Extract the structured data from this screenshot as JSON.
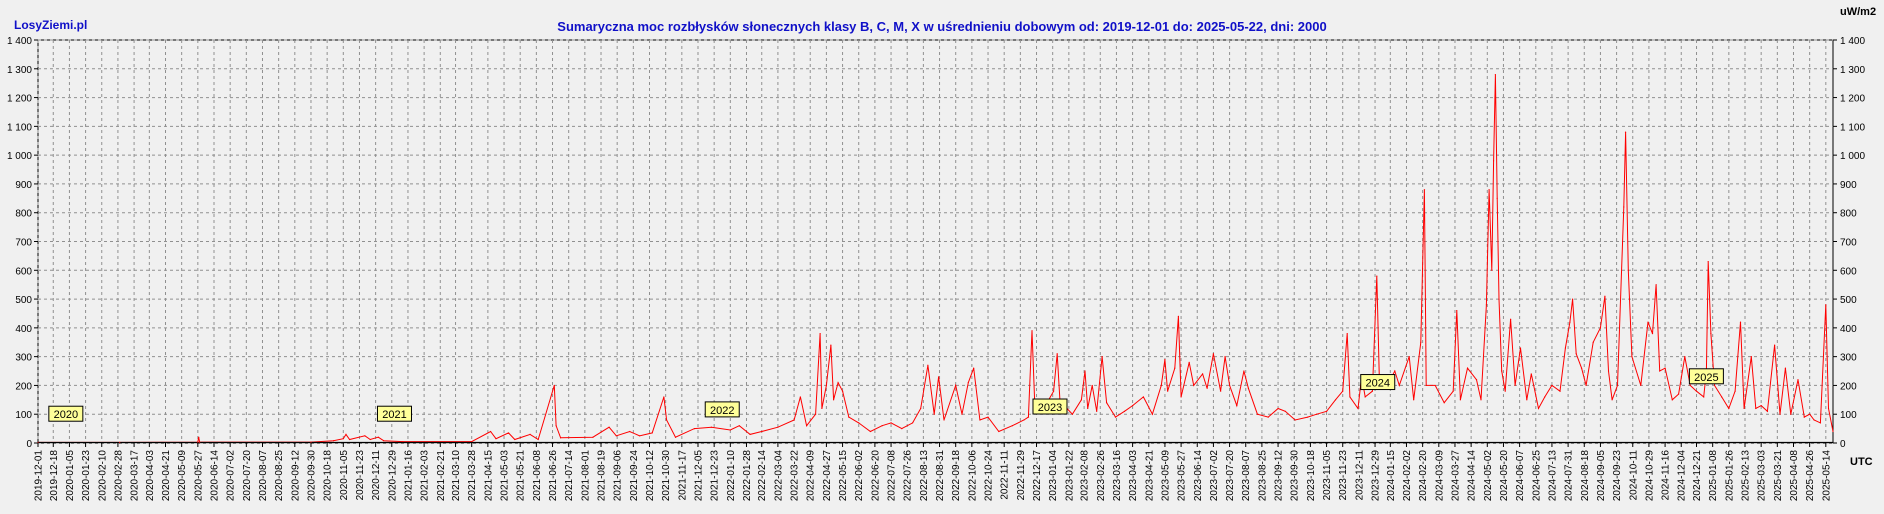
{
  "brand": "LosyZiemi.pl",
  "unit_label": "uW/m2",
  "utc_label": "UTC",
  "chart_data": {
    "type": "line",
    "title": "Sumaryczna moc rozbłysków słonecznych klasy B, C, M, X w uśrednieniu dobowym od: 2019-12-01 do: 2025-05-22, dni: 2000",
    "xlabel": "UTC",
    "ylabel": "uW/m2",
    "x_start": "2019-12-01",
    "x_end": "2025-05-22",
    "days": 2000,
    "ylim": [
      0,
      1400
    ],
    "yticks": [
      0,
      100,
      200,
      300,
      400,
      500,
      600,
      700,
      800,
      900,
      1000,
      1100,
      1200,
      1300,
      1400
    ],
    "ytick_labels": [
      "0",
      "100",
      "200",
      "300",
      "400",
      "500",
      "600",
      "700",
      "800",
      "900",
      "1 000",
      "1 100",
      "1 200",
      "1 300",
      "1 400"
    ],
    "xtick_labels": [
      "2019-12-01",
      "2019-12-18",
      "2020-01-05",
      "2020-01-23",
      "2020-02-10",
      "2020-02-28",
      "2020-03-17",
      "2020-04-03",
      "2020-04-21",
      "2020-05-09",
      "2020-05-27",
      "2020-06-14",
      "2020-07-02",
      "2020-07-20",
      "2020-08-07",
      "2020-08-25",
      "2020-09-12",
      "2020-09-30",
      "2020-10-18",
      "2020-11-05",
      "2020-11-23",
      "2020-12-11",
      "2020-12-29",
      "2021-01-16",
      "2021-02-03",
      "2021-02-21",
      "2021-03-10",
      "2021-03-28",
      "2021-04-15",
      "2021-05-03",
      "2021-05-21",
      "2021-06-08",
      "2021-06-26",
      "2021-07-14",
      "2021-08-01",
      "2021-08-19",
      "2021-09-06",
      "2021-09-24",
      "2021-10-12",
      "2021-10-30",
      "2021-11-17",
      "2021-12-05",
      "2021-12-23",
      "2022-01-10",
      "2022-01-28",
      "2022-02-14",
      "2022-03-04",
      "2022-03-22",
      "2022-04-09",
      "2022-04-27",
      "2022-05-15",
      "2022-06-02",
      "2022-06-20",
      "2022-07-08",
      "2022-07-26",
      "2022-08-13",
      "2022-08-31",
      "2022-09-18",
      "2022-10-06",
      "2022-10-24",
      "2022-11-11",
      "2022-11-29",
      "2022-12-17",
      "2023-01-04",
      "2023-01-22",
      "2023-02-08",
      "2023-02-26",
      "2023-03-16",
      "2023-04-03",
      "2023-04-21",
      "2023-05-09",
      "2023-05-27",
      "2023-06-14",
      "2023-07-02",
      "2023-07-20",
      "2023-08-07",
      "2023-08-25",
      "2023-09-12",
      "2023-09-30",
      "2023-10-18",
      "2023-11-05",
      "2023-11-23",
      "2023-12-11",
      "2023-12-29",
      "2024-01-15",
      "2024-02-02",
      "2024-02-20",
      "2024-03-09",
      "2024-03-27",
      "2024-04-14",
      "2024-05-02",
      "2024-05-20",
      "2024-06-07",
      "2024-06-25",
      "2024-07-13",
      "2024-07-31",
      "2024-08-18",
      "2024-09-05",
      "2024-09-23",
      "2024-10-11",
      "2024-10-29",
      "2024-11-16",
      "2024-12-04",
      "2024-12-21",
      "2025-01-08",
      "2025-01-26",
      "2025-02-13",
      "2025-03-03",
      "2025-03-21",
      "2025-04-08",
      "2025-04-26",
      "2025-05-14"
    ],
    "grid": true,
    "series": [
      {
        "color": "#ff0000",
        "baseline_color": "#000000",
        "points": [
          [
            "2019-12-01",
            2
          ],
          [
            "2020-03-01",
            2
          ],
          [
            "2020-05-27",
            3
          ],
          [
            "2020-05-28",
            20
          ],
          [
            "2020-05-29",
            3
          ],
          [
            "2020-09-30",
            3
          ],
          [
            "2020-10-25",
            8
          ],
          [
            "2020-11-05",
            15
          ],
          [
            "2020-11-08",
            30
          ],
          [
            "2020-11-12",
            12
          ],
          [
            "2020-11-29",
            25
          ],
          [
            "2020-12-05",
            12
          ],
          [
            "2020-12-14",
            20
          ],
          [
            "2020-12-20",
            8
          ],
          [
            "2021-01-10",
            5
          ],
          [
            "2021-03-28",
            5
          ],
          [
            "2021-04-18",
            40
          ],
          [
            "2021-04-24",
            15
          ],
          [
            "2021-05-08",
            35
          ],
          [
            "2021-05-15",
            12
          ],
          [
            "2021-06-01",
            30
          ],
          [
            "2021-06-10",
            12
          ],
          [
            "2021-06-28",
            200
          ],
          [
            "2021-06-30",
            60
          ],
          [
            "2021-07-05",
            18
          ],
          [
            "2021-08-10",
            20
          ],
          [
            "2021-08-28",
            55
          ],
          [
            "2021-09-05",
            25
          ],
          [
            "2021-09-20",
            40
          ],
          [
            "2021-10-01",
            25
          ],
          [
            "2021-10-15",
            35
          ],
          [
            "2021-10-28",
            160
          ],
          [
            "2021-10-31",
            80
          ],
          [
            "2021-11-10",
            20
          ],
          [
            "2021-12-01",
            50
          ],
          [
            "2021-12-20",
            55
          ],
          [
            "2022-01-10",
            45
          ],
          [
            "2022-01-20",
            60
          ],
          [
            "2022-02-01",
            30
          ],
          [
            "2022-02-14",
            40
          ],
          [
            "2022-03-04",
            55
          ],
          [
            "2022-03-22",
            80
          ],
          [
            "2022-03-29",
            160
          ],
          [
            "2022-04-05",
            60
          ],
          [
            "2022-04-15",
            100
          ],
          [
            "2022-04-20",
            380
          ],
          [
            "2022-04-22",
            120
          ],
          [
            "2022-04-27",
            200
          ],
          [
            "2022-05-02",
            340
          ],
          [
            "2022-05-05",
            150
          ],
          [
            "2022-05-10",
            210
          ],
          [
            "2022-05-15",
            180
          ],
          [
            "2022-05-22",
            90
          ],
          [
            "2022-06-02",
            70
          ],
          [
            "2022-06-15",
            40
          ],
          [
            "2022-06-28",
            60
          ],
          [
            "2022-07-08",
            70
          ],
          [
            "2022-07-20",
            50
          ],
          [
            "2022-08-01",
            70
          ],
          [
            "2022-08-10",
            120
          ],
          [
            "2022-08-18",
            270
          ],
          [
            "2022-08-25",
            100
          ],
          [
            "2022-08-30",
            230
          ],
          [
            "2022-09-05",
            80
          ],
          [
            "2022-09-18",
            200
          ],
          [
            "2022-09-25",
            100
          ],
          [
            "2022-10-02",
            210
          ],
          [
            "2022-10-08",
            260
          ],
          [
            "2022-10-15",
            80
          ],
          [
            "2022-10-24",
            90
          ],
          [
            "2022-11-05",
            40
          ],
          [
            "2022-11-20",
            60
          ],
          [
            "2022-12-03",
            80
          ],
          [
            "2022-12-08",
            90
          ],
          [
            "2022-12-12",
            390
          ],
          [
            "2022-12-15",
            140
          ],
          [
            "2022-12-25",
            120
          ],
          [
            "2023-01-05",
            180
          ],
          [
            "2023-01-09",
            310
          ],
          [
            "2023-01-12",
            150
          ],
          [
            "2023-01-20",
            120
          ],
          [
            "2023-01-26",
            100
          ],
          [
            "2023-02-05",
            150
          ],
          [
            "2023-02-09",
            250
          ],
          [
            "2023-02-12",
            120
          ],
          [
            "2023-02-17",
            200
          ],
          [
            "2023-02-22",
            110
          ],
          [
            "2023-02-28",
            300
          ],
          [
            "2023-03-05",
            140
          ],
          [
            "2023-03-15",
            90
          ],
          [
            "2023-03-25",
            110
          ],
          [
            "2023-04-03",
            130
          ],
          [
            "2023-04-15",
            160
          ],
          [
            "2023-04-25",
            100
          ],
          [
            "2023-05-05",
            200
          ],
          [
            "2023-05-09",
            290
          ],
          [
            "2023-05-12",
            180
          ],
          [
            "2023-05-20",
            260
          ],
          [
            "2023-05-24",
            440
          ],
          [
            "2023-05-27",
            160
          ],
          [
            "2023-06-05",
            280
          ],
          [
            "2023-06-10",
            200
          ],
          [
            "2023-06-20",
            240
          ],
          [
            "2023-06-25",
            190
          ],
          [
            "2023-07-02",
            310
          ],
          [
            "2023-07-10",
            180
          ],
          [
            "2023-07-15",
            300
          ],
          [
            "2023-07-20",
            200
          ],
          [
            "2023-07-28",
            130
          ],
          [
            "2023-08-05",
            250
          ],
          [
            "2023-08-10",
            190
          ],
          [
            "2023-08-20",
            100
          ],
          [
            "2023-09-01",
            90
          ],
          [
            "2023-09-12",
            120
          ],
          [
            "2023-09-20",
            110
          ],
          [
            "2023-10-01",
            80
          ],
          [
            "2023-10-15",
            90
          ],
          [
            "2023-10-25",
            100
          ],
          [
            "2023-11-05",
            110
          ],
          [
            "2023-11-15",
            150
          ],
          [
            "2023-11-23",
            180
          ],
          [
            "2023-11-28",
            380
          ],
          [
            "2023-12-01",
            160
          ],
          [
            "2023-12-10",
            120
          ],
          [
            "2023-12-14",
            230
          ],
          [
            "2023-12-18",
            160
          ],
          [
            "2023-12-26",
            180
          ],
          [
            "2023-12-31",
            580
          ],
          [
            "2024-01-03",
            200
          ],
          [
            "2024-01-10",
            190
          ],
          [
            "2024-01-20",
            250
          ],
          [
            "2024-01-25",
            200
          ],
          [
            "2024-02-05",
            300
          ],
          [
            "2024-02-10",
            150
          ],
          [
            "2024-02-18",
            350
          ],
          [
            "2024-02-22",
            880
          ],
          [
            "2024-02-24",
            200
          ],
          [
            "2024-03-05",
            200
          ],
          [
            "2024-03-15",
            140
          ],
          [
            "2024-03-25",
            180
          ],
          [
            "2024-03-29",
            460
          ],
          [
            "2024-04-02",
            150
          ],
          [
            "2024-04-10",
            260
          ],
          [
            "2024-04-20",
            220
          ],
          [
            "2024-04-25",
            150
          ],
          [
            "2024-05-01",
            480
          ],
          [
            "2024-05-04",
            880
          ],
          [
            "2024-05-07",
            600
          ],
          [
            "2024-05-09",
            980
          ],
          [
            "2024-05-11",
            1280
          ],
          [
            "2024-05-13",
            850
          ],
          [
            "2024-05-15",
            500
          ],
          [
            "2024-05-18",
            250
          ],
          [
            "2024-05-22",
            180
          ],
          [
            "2024-05-28",
            430
          ],
          [
            "2024-06-02",
            200
          ],
          [
            "2024-06-08",
            330
          ],
          [
            "2024-06-15",
            150
          ],
          [
            "2024-06-20",
            240
          ],
          [
            "2024-06-28",
            120
          ],
          [
            "2024-07-05",
            160
          ],
          [
            "2024-07-13",
            200
          ],
          [
            "2024-07-22",
            180
          ],
          [
            "2024-07-28",
            330
          ],
          [
            "2024-08-02",
            420
          ],
          [
            "2024-08-05",
            500
          ],
          [
            "2024-08-09",
            310
          ],
          [
            "2024-08-15",
            260
          ],
          [
            "2024-08-20",
            200
          ],
          [
            "2024-08-28",
            350
          ],
          [
            "2024-09-05",
            400
          ],
          [
            "2024-09-10",
            510
          ],
          [
            "2024-09-14",
            250
          ],
          [
            "2024-09-18",
            150
          ],
          [
            "2024-09-24",
            200
          ],
          [
            "2024-10-01",
            820
          ],
          [
            "2024-10-03",
            1080
          ],
          [
            "2024-10-06",
            600
          ],
          [
            "2024-10-10",
            300
          ],
          [
            "2024-10-20",
            200
          ],
          [
            "2024-10-28",
            420
          ],
          [
            "2024-11-02",
            380
          ],
          [
            "2024-11-06",
            550
          ],
          [
            "2024-11-10",
            250
          ],
          [
            "2024-11-16",
            260
          ],
          [
            "2024-11-24",
            150
          ],
          [
            "2024-12-01",
            170
          ],
          [
            "2024-12-08",
            300
          ],
          [
            "2024-12-14",
            200
          ],
          [
            "2024-12-21",
            180
          ],
          [
            "2024-12-29",
            160
          ],
          [
            "2025-01-01",
            250
          ],
          [
            "2025-01-03",
            630
          ],
          [
            "2025-01-06",
            380
          ],
          [
            "2025-01-10",
            200
          ],
          [
            "2025-01-18",
            160
          ],
          [
            "2025-01-26",
            120
          ],
          [
            "2025-02-02",
            180
          ],
          [
            "2025-02-08",
            420
          ],
          [
            "2025-02-12",
            120
          ],
          [
            "2025-02-20",
            300
          ],
          [
            "2025-02-25",
            120
          ],
          [
            "2025-03-03",
            130
          ],
          [
            "2025-03-10",
            110
          ],
          [
            "2025-03-18",
            340
          ],
          [
            "2025-03-24",
            100
          ],
          [
            "2025-03-30",
            260
          ],
          [
            "2025-04-05",
            100
          ],
          [
            "2025-04-13",
            220
          ],
          [
            "2025-04-20",
            90
          ],
          [
            "2025-04-26",
            100
          ],
          [
            "2025-05-01",
            80
          ],
          [
            "2025-05-08",
            70
          ],
          [
            "2025-05-14",
            480
          ],
          [
            "2025-05-17",
            120
          ],
          [
            "2025-05-22",
            40
          ]
        ]
      }
    ],
    "annotations": [
      {
        "text": "2020",
        "x": "2020-01-01",
        "y": 100
      },
      {
        "text": "2021",
        "x": "2021-01-01",
        "y": 100
      },
      {
        "text": "2022",
        "x": "2022-01-01",
        "y": 115
      },
      {
        "text": "2023",
        "x": "2023-01-01",
        "y": 125
      },
      {
        "text": "2024",
        "x": "2024-01-01",
        "y": 210
      },
      {
        "text": "2025",
        "x": "2025-01-01",
        "y": 230
      }
    ],
    "colors": {
      "series": "#ff0000",
      "label_bg": "#ffff99",
      "title": "#1010c8"
    }
  }
}
